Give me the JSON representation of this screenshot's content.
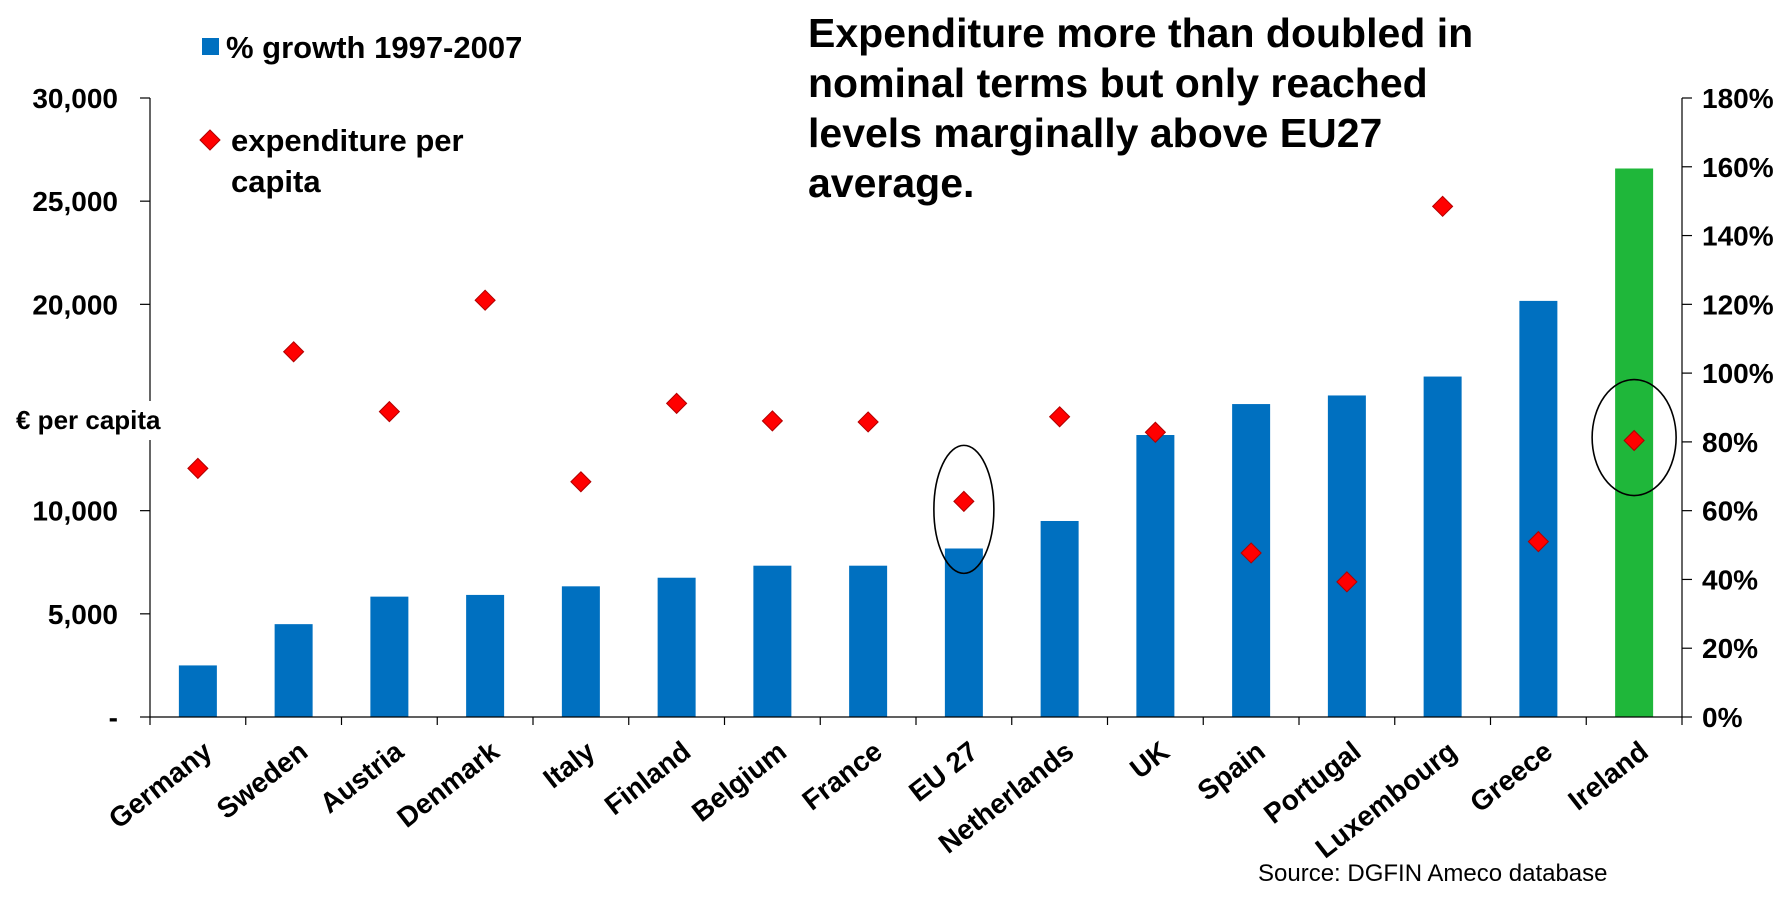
{
  "chart_data": {
    "type": "bar",
    "categories": [
      "Germany",
      "Sweden",
      "Austria",
      "Denmark",
      "Italy",
      "Finland",
      "Belgium",
      "France",
      "EU 27",
      "Netherlands",
      "UK",
      "Spain",
      "Portugal",
      "Luxembourg",
      "Greece",
      "Ireland"
    ],
    "series": [
      {
        "name": "% growth 1997-2007",
        "type": "bar",
        "axis": "right",
        "values": [
          15,
          27,
          35,
          35.5,
          38,
          40.5,
          44,
          44,
          49,
          57,
          82,
          91,
          93.5,
          99,
          121,
          159.5
        ],
        "colors": [
          "#0070C0",
          "#0070C0",
          "#0070C0",
          "#0070C0",
          "#0070C0",
          "#0070C0",
          "#0070C0",
          "#0070C0",
          "#0070C0",
          "#0070C0",
          "#0070C0",
          "#0070C0",
          "#0070C0",
          "#0070C0",
          "#0070C0",
          "#1FB73A"
        ]
      },
      {
        "name": "expenditure per capita",
        "type": "scatter",
        "marker": "diamond",
        "color": "#FF0000",
        "axis": "left",
        "values": [
          12050,
          17700,
          14800,
          20200,
          11400,
          15200,
          14350,
          14300,
          10450,
          14550,
          13800,
          7950,
          6550,
          24750,
          8500,
          13400
        ]
      }
    ],
    "left_axis": {
      "label": "€ per capita",
      "ylim": [
        0,
        30000
      ],
      "ticks": [
        "-",
        "5,000",
        "10,000",
        "",
        "20,000",
        "25,000",
        "30,000"
      ]
    },
    "right_axis": {
      "ylim": [
        0,
        180
      ],
      "ticks": [
        "0%",
        "20%",
        "40%",
        "60%",
        "80%",
        "100%",
        "120%",
        "140%",
        "160%",
        "180%"
      ]
    },
    "highlighted": [
      "EU 27",
      "Ireland"
    ],
    "legend": {
      "position": "top-left",
      "entries": [
        {
          "label": "% growth 1997-2007",
          "marker": "square",
          "color": "#0070C0"
        },
        {
          "label_lines": [
            "expenditure per",
            "capita"
          ],
          "marker": "diamond",
          "color": "#FF0000"
        }
      ]
    },
    "annotation_lines": [
      "Expenditure more than  doubled in",
      "nominal terms but only reached",
      "levels marginally above EU27",
      "average."
    ],
    "source": "Source: DGFIN Ameco database"
  }
}
